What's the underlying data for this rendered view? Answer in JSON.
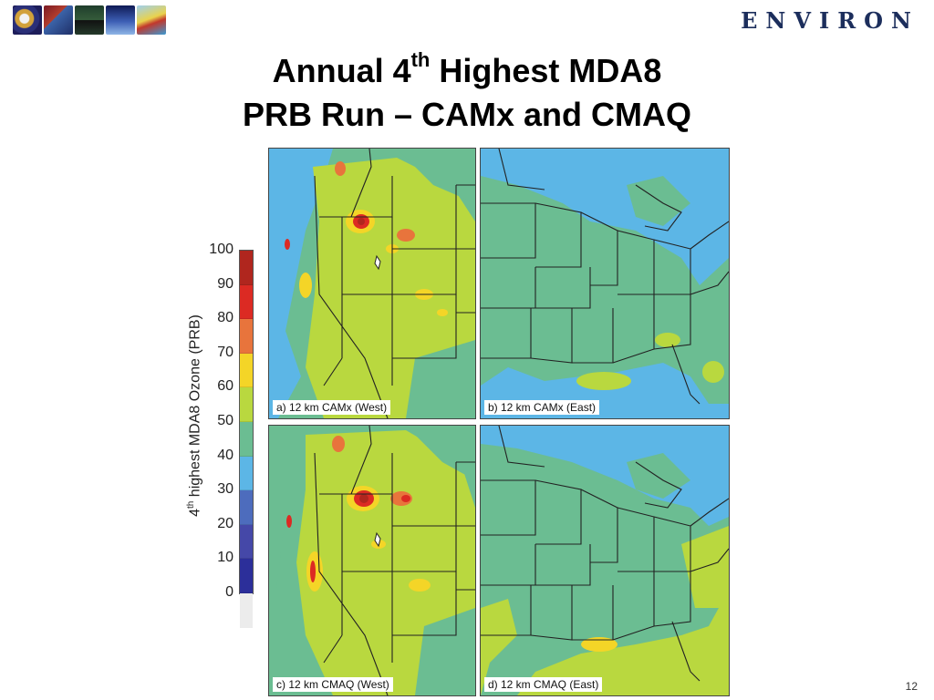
{
  "header": {
    "brand": "ENVIRON",
    "title_line1_pre": "Annual 4",
    "title_sup": "th",
    "title_line1_post": " Highest MDA8",
    "title_line2": "PRB Run – CAMx and CMAQ"
  },
  "figure": {
    "colorbar": {
      "label_pre": "4",
      "label_sup": "th",
      "label_post": " highest MDA8 Ozone (PRB)",
      "ticks": [
        "100",
        "90",
        "80",
        "70",
        "60",
        "50",
        "40",
        "30",
        "20",
        "10",
        "0"
      ],
      "colors": [
        "#b0261e",
        "#dc2a23",
        "#e8743c",
        "#f4d527",
        "#b9d83f",
        "#6bbd92",
        "#5cb6e6",
        "#4d6cbd",
        "#4548a8",
        "#2c2f9a",
        "#ececec"
      ]
    },
    "panels": [
      {
        "label": "a) 12 km CAMx (West)"
      },
      {
        "label": "b) 12 km CAMx (East)"
      },
      {
        "label": "c) 12 km CMAQ (West)"
      },
      {
        "label": "d) 12 km CMAQ (East)"
      }
    ]
  },
  "slide_number": "12"
}
